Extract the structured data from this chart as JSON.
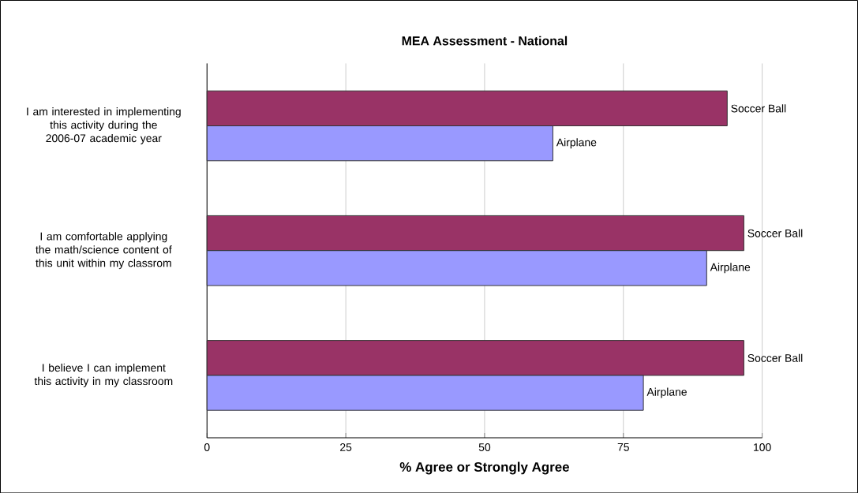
{
  "chart_data": {
    "type": "bar",
    "orientation": "horizontal",
    "title": "MEA Assessment - National",
    "xlabel": "% Agree or Strongly Agree",
    "categories": [
      "I am interested in implementing this activity during the 2006-07 academic year",
      "I am comfortable applying the math/science content of this unit within my classrom",
      "I believe I can implement this activity in my classroom"
    ],
    "series": [
      {
        "name": "Soccer Ball",
        "color": "#993366",
        "values": [
          93.7,
          96.7,
          96.7
        ]
      },
      {
        "name": "Airplane",
        "color": "#9999ff",
        "values": [
          62.3,
          90.0,
          78.6
        ]
      }
    ],
    "xlim": [
      0,
      100
    ],
    "xticks": [
      0,
      25,
      50,
      75,
      100
    ],
    "grid": "x",
    "legend": false
  }
}
